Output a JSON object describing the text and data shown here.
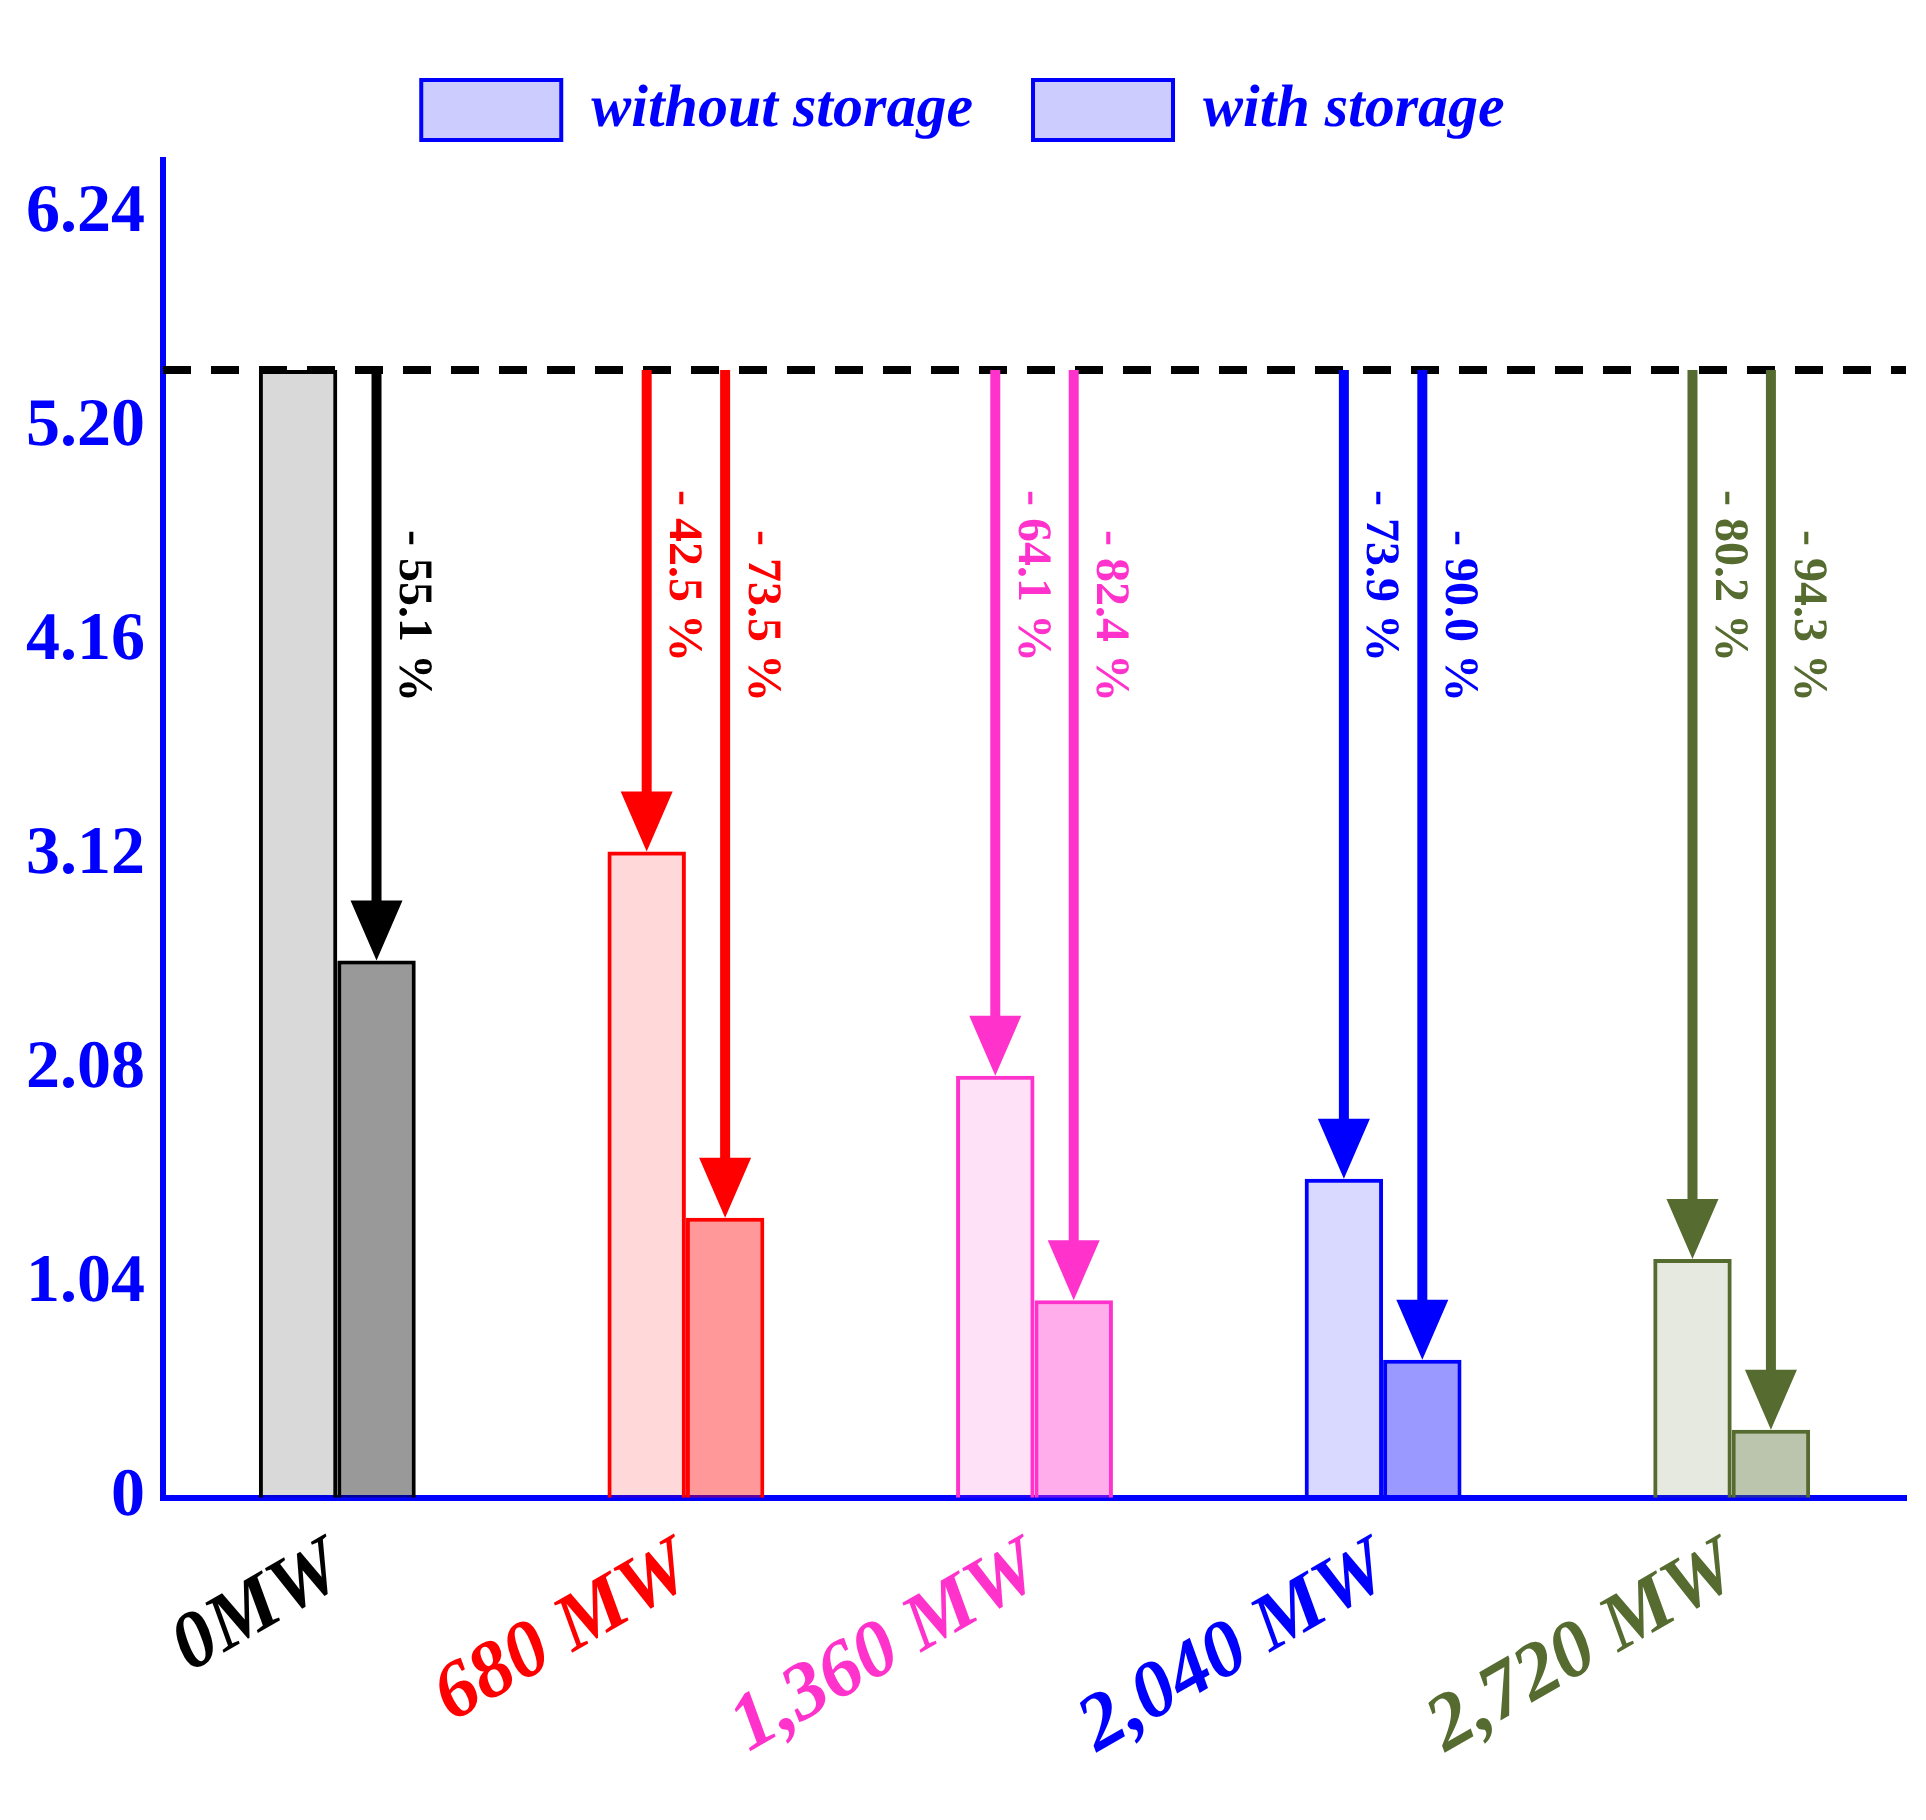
{
  "chart_data": {
    "type": "bar",
    "categories": [
      "0MW",
      "680 MW",
      "1,360 MW",
      "2,040 MW",
      "2,720 MW"
    ],
    "series": [
      {
        "name": "without storage",
        "color": "#0000ff",
        "colors": [
          "#000000",
          "#ff0000",
          "#ff33cc",
          "#0000ff",
          "#556b2f"
        ],
        "values": [
          5.48,
          3.14,
          2.05,
          1.55,
          1.16
        ]
      },
      {
        "name": "with storage",
        "color": "#0000ff",
        "colors": [
          "#000000",
          "#ff0000",
          "#ff33cc",
          "#0000ff",
          "#556b2f"
        ],
        "values": [
          2.61,
          1.36,
          0.96,
          0.67,
          0.33
        ]
      }
    ],
    "ylim": [
      0,
      6.5
    ],
    "yticks": [
      0,
      1.04,
      2.08,
      3.12,
      4.16,
      {
        "value": 5.2,
        "label": "5.20"
      },
      6.24
    ],
    "ref_lines": [
      {
        "axis": "y",
        "value": 5.48,
        "color": "#000000",
        "line_style": "dashed"
      }
    ],
    "annotations": [
      "- 55.1 %",
      "- 42.5 %",
      "- 73.5 %",
      "- 64.1 %",
      "- 82.4 %",
      "- 73.9 %",
      "- 90.0 %",
      "- 80.2 %",
      "- 94.3 %"
    ],
    "grid": false,
    "legend": "top"
  }
}
